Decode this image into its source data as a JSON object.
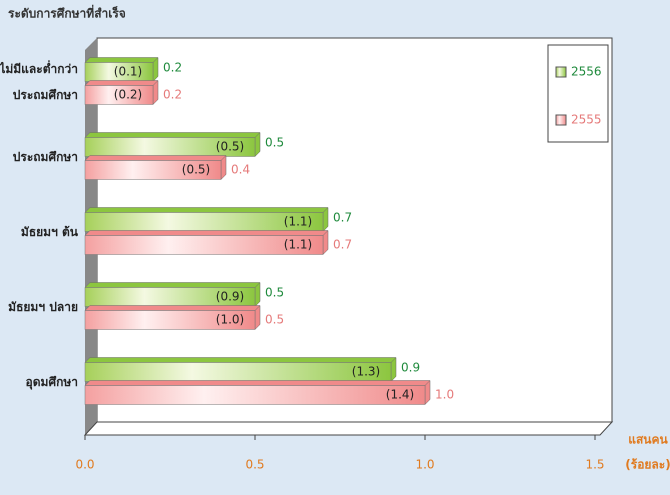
{
  "chart_data": {
    "type": "bar",
    "orientation": "horizontal",
    "title": "ระดับการศึกษาที่สำเร็จ",
    "x_axis_label": [
      "แสนคน",
      "(ร้อยละ)"
    ],
    "categories": [
      [
        "ไม่มีและต่ำกว่า",
        "ประถมศึกษา"
      ],
      "ประถมศึกษา",
      "มัธยมฯ ต้น",
      "มัธยมฯ ปลาย",
      "อุดมศึกษา"
    ],
    "series": [
      {
        "name": "2556",
        "color": "#8cc63f",
        "label_color": "#1f8a3c",
        "values": [
          0.2,
          0.5,
          0.7,
          0.5,
          0.9
        ],
        "percent_labels": [
          "(0.1)",
          "(0.5)",
          "(1.1)",
          "(0.9)",
          "(1.3)"
        ]
      },
      {
        "name": "2555",
        "color": "#f08a8a",
        "label_color": "#e57a7a",
        "values": [
          0.2,
          0.4,
          0.7,
          0.5,
          1.0
        ],
        "value_labels": [
          "0.2",
          "0.4",
          "0.7",
          "0.5",
          "1.0"
        ],
        "percent_labels": [
          "(0.2)",
          "(0.5)",
          "(1.1)",
          "(1.0)",
          "(1.4)"
        ]
      }
    ],
    "xlim": [
      0,
      1.5
    ],
    "xticks": [
      {
        "value": 0,
        "label": "0.0"
      },
      0.5,
      {
        "value": 1,
        "label": "1.0"
      },
      1.5
    ],
    "legend": "upper right"
  }
}
